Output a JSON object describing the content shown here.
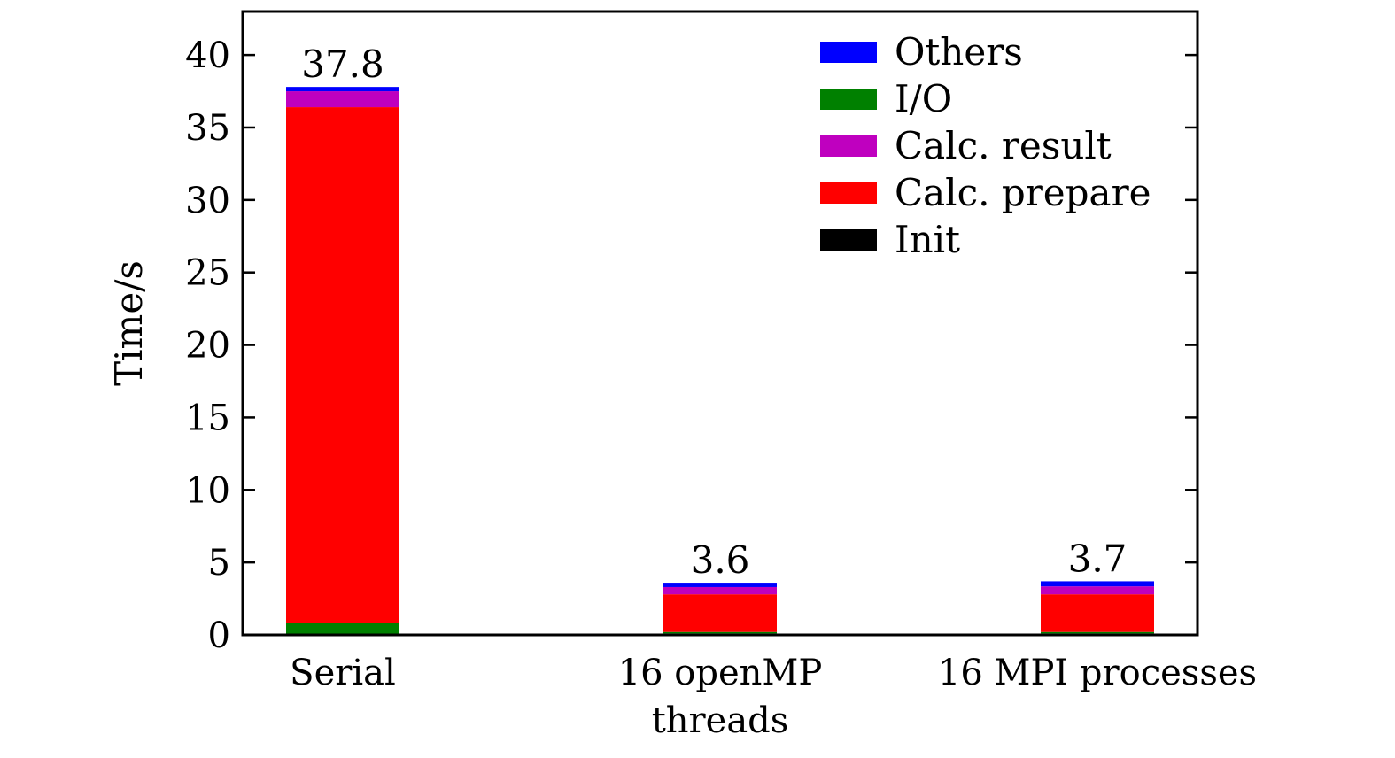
{
  "chart_data": {
    "type": "bar",
    "stacked": true,
    "ylabel": "Time/s",
    "xlabel": "",
    "ylim": [
      0,
      43
    ],
    "yticks": [
      0,
      5,
      10,
      15,
      20,
      25,
      30,
      35,
      40
    ],
    "grid": false,
    "legend_position": "top-right",
    "categories": [
      [
        "Serial"
      ],
      [
        "16 openMP",
        "threads"
      ],
      [
        "16 MPI processes"
      ]
    ],
    "totals": [
      "37.8",
      "3.6",
      "3.7"
    ],
    "series": [
      {
        "name": "Init",
        "color": "#000000",
        "values": [
          0.05,
          0.1,
          0.1
        ]
      },
      {
        "name": "I/O",
        "color": "#008000",
        "values": [
          0.75,
          0.1,
          0.1
        ]
      },
      {
        "name": "Calc. prepare",
        "color": "#ff0000",
        "values": [
          35.6,
          2.6,
          2.6
        ]
      },
      {
        "name": "Calc. result",
        "color": "#bf00bf",
        "values": [
          1.1,
          0.5,
          0.55
        ]
      },
      {
        "name": "Others",
        "color": "#0000ff",
        "values": [
          0.3,
          0.3,
          0.35
        ]
      }
    ],
    "legend_order": [
      "Others",
      "I/O",
      "Calc. result",
      "Calc. prepare",
      "Init"
    ]
  }
}
